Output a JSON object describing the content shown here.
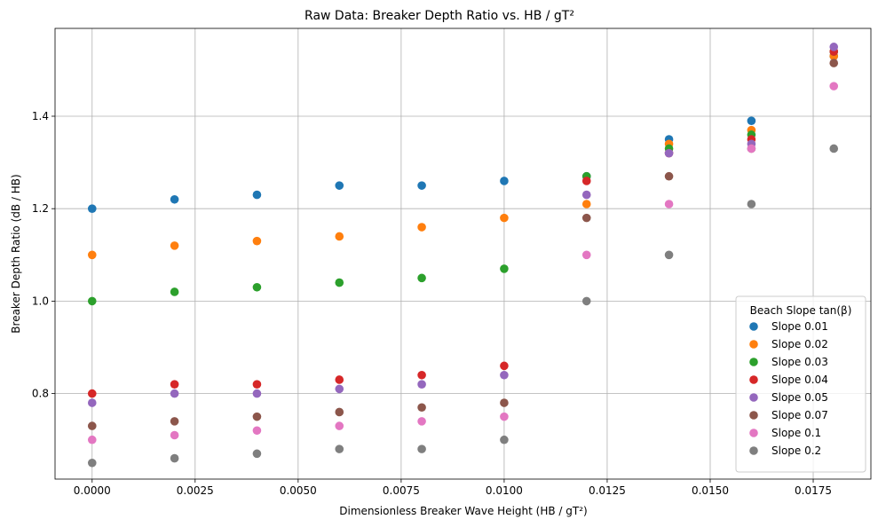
{
  "chart_data": {
    "type": "scatter",
    "title": "Raw Data: Breaker Depth Ratio vs. HB / gT²",
    "xlabel": "Dimensionless Breaker Wave Height (HB / gT²)",
    "ylabel": "Breaker Depth Ratio (dB / HB)",
    "xlim": [
      -0.0009,
      0.0189
    ],
    "ylim": [
      0.615,
      1.59
    ],
    "xticks": [
      "0.0000",
      "0.0025",
      "0.0050",
      "0.0075",
      "0.0100",
      "0.0125",
      "0.0150",
      "0.0175"
    ],
    "yticks": [
      "0.8",
      "1.0",
      "1.2",
      "1.4"
    ],
    "grid": true,
    "legend": {
      "title": "Beach Slope tan(β)",
      "placement": "lower-right"
    },
    "x": [
      0.0,
      0.002,
      0.004,
      0.006,
      0.008,
      0.01,
      0.012,
      0.014,
      0.016,
      0.018
    ],
    "series": [
      {
        "name": "Slope 0.01",
        "color": "#1f77b4",
        "values": [
          1.2,
          1.22,
          1.23,
          1.25,
          1.25,
          1.26,
          1.27,
          1.35,
          1.39,
          1.53
        ]
      },
      {
        "name": "Slope 0.02",
        "color": "#ff7f0e",
        "values": [
          1.1,
          1.12,
          1.13,
          1.14,
          1.16,
          1.18,
          1.21,
          1.34,
          1.37,
          1.53
        ]
      },
      {
        "name": "Slope 0.03",
        "color": "#2ca02c",
        "values": [
          1.0,
          1.02,
          1.03,
          1.04,
          1.05,
          1.07,
          1.27,
          1.33,
          1.36,
          1.54
        ]
      },
      {
        "name": "Slope 0.04",
        "color": "#d62728",
        "values": [
          0.8,
          0.82,
          0.82,
          0.83,
          0.84,
          0.86,
          1.26,
          1.32,
          1.35,
          1.54
        ]
      },
      {
        "name": "Slope 0.05",
        "color": "#9467bd",
        "values": [
          0.78,
          0.8,
          0.8,
          0.81,
          0.82,
          0.84,
          1.23,
          1.32,
          1.34,
          1.55
        ]
      },
      {
        "name": "Slope 0.07",
        "color": "#8c564b",
        "values": [
          0.73,
          0.74,
          0.75,
          0.76,
          0.77,
          0.78,
          1.18,
          1.27,
          1.33,
          1.515
        ]
      },
      {
        "name": "Slope 0.1",
        "color": "#e377c2",
        "values": [
          0.7,
          0.71,
          0.72,
          0.73,
          0.74,
          0.75,
          1.1,
          1.21,
          1.33,
          1.465
        ]
      },
      {
        "name": "Slope 0.2",
        "color": "#7f7f7f",
        "values": [
          0.65,
          0.66,
          0.67,
          0.68,
          0.68,
          0.7,
          1.0,
          1.1,
          1.21,
          1.33
        ]
      }
    ]
  }
}
